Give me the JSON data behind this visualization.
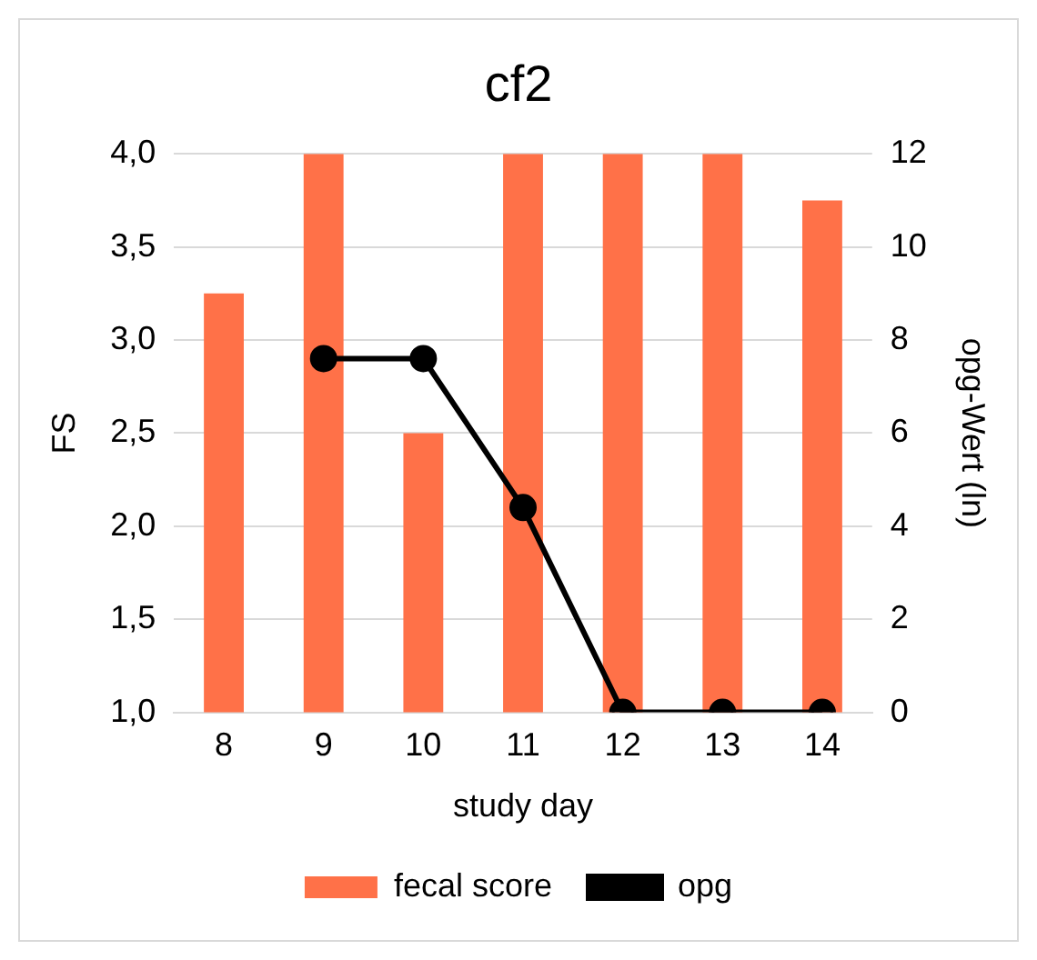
{
  "chart_data": {
    "type": "bar",
    "title": "cf2",
    "xlabel": "study day",
    "ylabel": "FS",
    "y2label": "opg-Wert (ln)",
    "categories": [
      "8",
      "9",
      "10",
      "11",
      "12",
      "13",
      "14"
    ],
    "series": [
      {
        "name": "fecal score",
        "color": "#ff7148",
        "values": [
          3.25,
          4.0,
          2.5,
          4.0,
          4.0,
          4.0,
          3.75
        ]
      },
      {
        "name": "opg",
        "type": "line",
        "axis": "y2",
        "color": "#000000",
        "values": [
          null,
          7.6,
          7.6,
          4.4,
          0,
          0,
          0
        ]
      }
    ],
    "ylim": [
      1,
      4
    ],
    "yticks": [
      {
        "value": 1,
        "label": "1,0"
      },
      {
        "value": 1.5,
        "label": "1,5"
      },
      {
        "value": 2,
        "label": "2,0"
      },
      {
        "value": 2.5,
        "label": "2,5"
      },
      {
        "value": 3,
        "label": "3,0"
      },
      {
        "value": 3.5,
        "label": "3,5"
      },
      {
        "value": 4,
        "label": "4,0"
      }
    ],
    "y2lim": [
      0,
      12
    ],
    "y2ticks": [
      0,
      2,
      4,
      6,
      8,
      10,
      12
    ],
    "grid": "y",
    "legend": "bottom",
    "marker": "circle"
  }
}
